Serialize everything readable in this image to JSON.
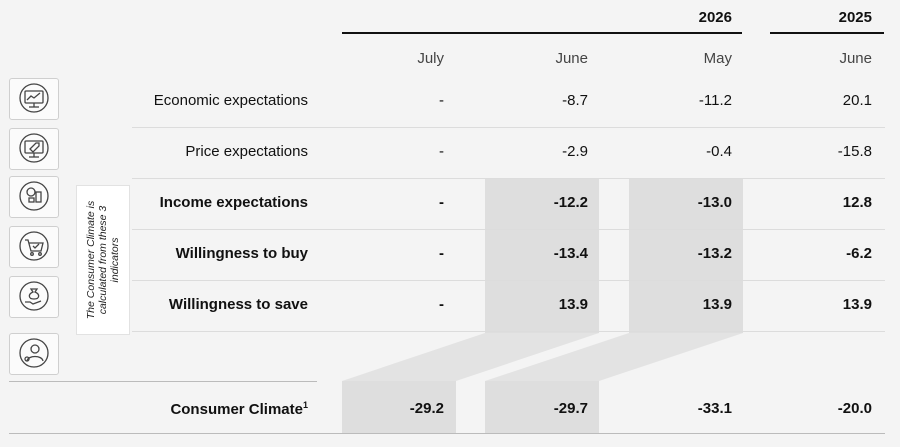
{
  "header": {
    "years": [
      "2026",
      "2025"
    ],
    "months": [
      "July",
      "June",
      "May",
      "June"
    ]
  },
  "sidenote": "The Consumer Climate is calculated from these 3 indicators",
  "rows": [
    {
      "label": "Economic expectations",
      "icon": "economy-monitor-icon",
      "values": [
        "-",
        "-8.7",
        "-11.2",
        "20.1"
      ],
      "bold": false
    },
    {
      "label": "Price expectations",
      "icon": "price-tag-monitor-icon",
      "values": [
        "-",
        "-2.9",
        "-0.4",
        "-15.8"
      ],
      "bold": false
    },
    {
      "label": "Income expectations",
      "icon": "coins-icon",
      "values": [
        "-",
        "-12.2",
        "-13.0",
        "12.8"
      ],
      "bold": true
    },
    {
      "label": "Willingness to buy",
      "icon": "shopping-cart-icon",
      "values": [
        "-",
        "-13.4",
        "-13.2",
        "-6.2"
      ],
      "bold": true
    },
    {
      "label": "Willingness to save",
      "icon": "money-bag-hand-icon",
      "values": [
        "-",
        "13.9",
        "13.9",
        "13.9"
      ],
      "bold": true
    }
  ],
  "empty_icon": "consumer-person-icon",
  "climate": {
    "label": "Consumer Climate",
    "footnote": "1",
    "values": [
      "-29.2",
      "-29.7",
      "-33.1",
      "-20.0"
    ]
  }
}
